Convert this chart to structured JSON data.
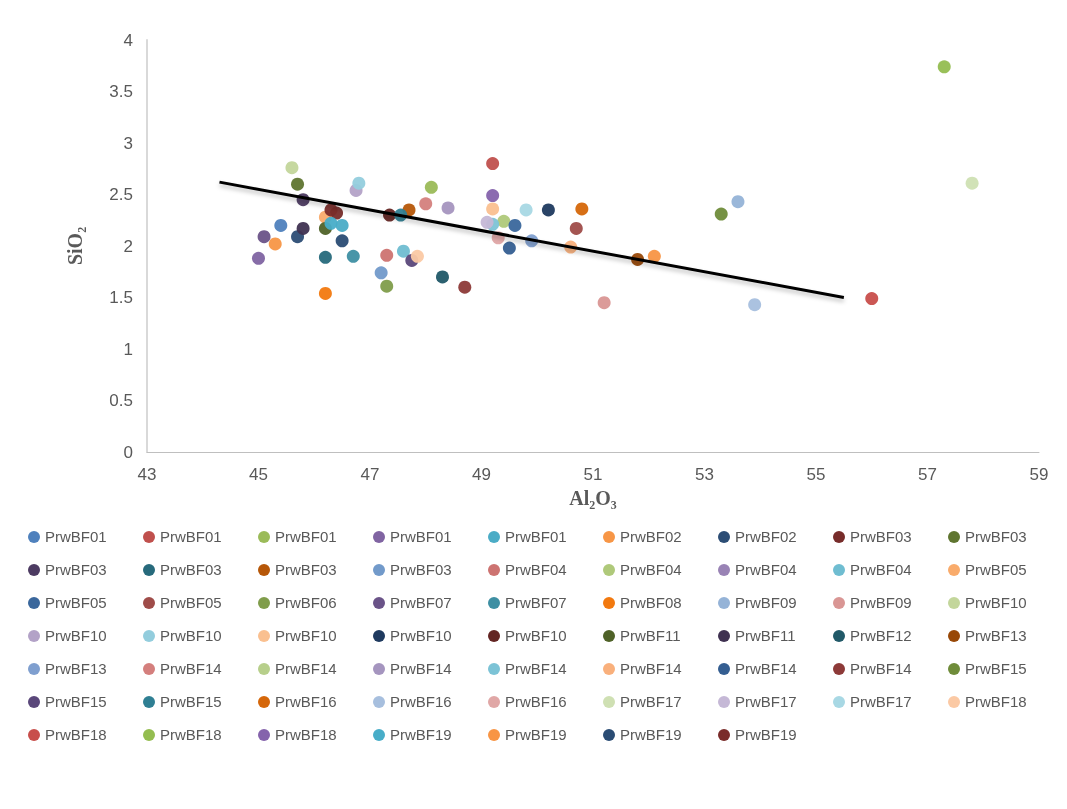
{
  "chart_data": {
    "type": "scatter",
    "xlabel": "Al₂O₃",
    "ylabel": "SiO₂",
    "xlim": [
      43,
      59
    ],
    "xticks": [
      43,
      45,
      47,
      49,
      51,
      53,
      55,
      57,
      59
    ],
    "ylim": [
      0,
      4
    ],
    "yticks": [
      0,
      0.5,
      1,
      1.5,
      2,
      2.5,
      3,
      3.5,
      4
    ],
    "grid": false,
    "legend": "bottom",
    "marker": "circle",
    "series": [
      {
        "name": "PrwBF01",
        "color": "#4f81bd",
        "x": [
          45.4
        ],
        "values": [
          2.2
        ]
      },
      {
        "name": "PrwBF01",
        "color": "#c0504d",
        "x": [
          49.2
        ],
        "values": [
          2.8
        ]
      },
      {
        "name": "PrwBF01",
        "color": "#9bbb59",
        "x": [
          48.1
        ],
        "values": [
          2.57
        ]
      },
      {
        "name": "PrwBF01",
        "color": "#8064a2",
        "x": [
          45.0
        ],
        "values": [
          1.88
        ]
      },
      {
        "name": "PrwBF01",
        "color": "#4bacc6",
        "x": [
          46.5
        ],
        "values": [
          2.2
        ]
      },
      {
        "name": "PrwBF02",
        "color": "#f79646",
        "x": [
          45.3
        ],
        "values": [
          2.02
        ]
      },
      {
        "name": "PrwBF02",
        "color": "#2c4d75",
        "x": [
          45.7
        ],
        "values": [
          2.09
        ]
      },
      {
        "name": "PrwBF03",
        "color": "#772c2a",
        "x": [
          46.4
        ],
        "values": [
          2.32
        ]
      },
      {
        "name": "PrwBF03",
        "color": "#5f7530",
        "x": [
          45.7
        ],
        "values": [
          2.6
        ]
      },
      {
        "name": "PrwBF03",
        "color": "#4d3b62",
        "x": [
          45.8
        ],
        "values": [
          2.45
        ]
      },
      {
        "name": "PrwBF03",
        "color": "#276a7c",
        "x": [
          46.2
        ],
        "values": [
          1.89
        ]
      },
      {
        "name": "PrwBF03",
        "color": "#b65708",
        "x": [
          47.7
        ],
        "values": [
          2.35
        ]
      },
      {
        "name": "PrwBF03",
        "color": "#729aca",
        "x": [
          47.2
        ],
        "values": [
          1.74
        ]
      },
      {
        "name": "PrwBF04",
        "color": "#cd7371",
        "x": [
          47.3
        ],
        "values": [
          1.91
        ]
      },
      {
        "name": "PrwBF04",
        "color": "#afc97a",
        "x": [
          49.4
        ],
        "values": [
          2.24
        ]
      },
      {
        "name": "PrwBF04",
        "color": "#9983b5",
        "x": [
          null
        ],
        "values": [
          null
        ]
      },
      {
        "name": "PrwBF04",
        "color": "#6fbdd1",
        "x": [
          47.6
        ],
        "values": [
          1.95
        ]
      },
      {
        "name": "PrwBF05",
        "color": "#f9ab6b",
        "x": [
          46.2
        ],
        "values": [
          2.28
        ]
      },
      {
        "name": "PrwBF05",
        "color": "#3a679c",
        "x": [
          49.6
        ],
        "values": [
          2.2
        ]
      },
      {
        "name": "PrwBF05",
        "color": "#9f4c49",
        "x": [
          50.7
        ],
        "values": [
          2.17
        ]
      },
      {
        "name": "PrwBF06",
        "color": "#809d4b",
        "x": [
          47.3
        ],
        "values": [
          1.61
        ]
      },
      {
        "name": "PrwBF07",
        "color": "#6a5388",
        "x": [
          45.1
        ],
        "values": [
          2.09
        ]
      },
      {
        "name": "PrwBF07",
        "color": "#3e8fa3",
        "x": [
          46.7
        ],
        "values": [
          1.9
        ]
      },
      {
        "name": "PrwBF08",
        "color": "#f2790f",
        "x": [
          46.2
        ],
        "values": [
          1.54
        ]
      },
      {
        "name": "PrwBF09",
        "color": "#95b3d7",
        "x": [
          53.6
        ],
        "values": [
          2.43
        ]
      },
      {
        "name": "PrwBF09",
        "color": "#d99694",
        "x": [
          51.2
        ],
        "values": [
          1.45
        ]
      },
      {
        "name": "PrwBF10",
        "color": "#c3d69b",
        "x": [
          45.6
        ],
        "values": [
          2.76
        ]
      },
      {
        "name": "PrwBF10",
        "color": "#b3a2c7",
        "x": [
          46.75
        ],
        "values": [
          2.54
        ]
      },
      {
        "name": "PrwBF10",
        "color": "#93cddd",
        "x": [
          46.8
        ],
        "values": [
          2.61
        ]
      },
      {
        "name": "PrwBF10",
        "color": "#fac090",
        "x": [
          49.2
        ],
        "values": [
          2.36
        ]
      },
      {
        "name": "PrwBF10",
        "color": "#1f3a5f",
        "x": [
          50.2
        ],
        "values": [
          2.35
        ]
      },
      {
        "name": "PrwBF10",
        "color": "#632523",
        "x": [
          47.35
        ],
        "values": [
          2.3
        ]
      },
      {
        "name": "PrwBF11",
        "color": "#4f6228",
        "x": [
          46.2
        ],
        "values": [
          2.17
        ]
      },
      {
        "name": "PrwBF11",
        "color": "#3f3151",
        "x": [
          45.8
        ],
        "values": [
          2.17
        ]
      },
      {
        "name": "PrwBF12",
        "color": "#215968",
        "x": [
          48.3
        ],
        "values": [
          1.7
        ]
      },
      {
        "name": "PrwBF13",
        "color": "#984807",
        "x": [
          51.8
        ],
        "values": [
          1.87
        ]
      },
      {
        "name": "PrwBF13",
        "color": "#7f9fcf",
        "x": [
          49.9
        ],
        "values": [
          2.05
        ]
      },
      {
        "name": "PrwBF14",
        "color": "#d47f7d",
        "x": [
          48.0
        ],
        "values": [
          2.41
        ]
      },
      {
        "name": "PrwBF14",
        "color": "#b7cf8b",
        "x": [
          null
        ],
        "values": [
          null
        ]
      },
      {
        "name": "PrwBF14",
        "color": "#a595bf",
        "x": [
          48.4
        ],
        "values": [
          2.37
        ]
      },
      {
        "name": "PrwBF14",
        "color": "#7cc3d6",
        "x": [
          49.2
        ],
        "values": [
          2.21
        ]
      },
      {
        "name": "PrwBF14",
        "color": "#f9b07c",
        "x": [
          50.6
        ],
        "values": [
          1.99
        ]
      },
      {
        "name": "PrwBF14",
        "color": "#345e91",
        "x": [
          49.5
        ],
        "values": [
          1.98
        ]
      },
      {
        "name": "PrwBF14",
        "color": "#8d3a38",
        "x": [
          48.7
        ],
        "values": [
          1.6
        ]
      },
      {
        "name": "PrwBF15",
        "color": "#6f8c3a",
        "x": [
          53.3
        ],
        "values": [
          2.31
        ]
      },
      {
        "name": "PrwBF15",
        "color": "#5a477a",
        "x": [
          47.75
        ],
        "values": [
          1.86
        ]
      },
      {
        "name": "PrwBF15",
        "color": "#2f7f93",
        "x": [
          47.55
        ],
        "values": [
          2.3
        ]
      },
      {
        "name": "PrwBF16",
        "color": "#d5670a",
        "x": [
          50.8
        ],
        "values": [
          2.36
        ]
      },
      {
        "name": "PrwBF16",
        "color": "#a7bfde",
        "x": [
          53.9
        ],
        "values": [
          1.43
        ]
      },
      {
        "name": "PrwBF16",
        "color": "#e0a7a6",
        "x": [
          49.3
        ],
        "values": [
          2.08
        ]
      },
      {
        "name": "PrwBF17",
        "color": "#cfe0b3",
        "x": [
          57.8
        ],
        "values": [
          2.61
        ]
      },
      {
        "name": "PrwBF17",
        "color": "#c5b8d6",
        "x": [
          49.1
        ],
        "values": [
          2.23
        ]
      },
      {
        "name": "PrwBF17",
        "color": "#a8d8e4",
        "x": [
          49.8
        ],
        "values": [
          2.35
        ]
      },
      {
        "name": "PrwBF18",
        "color": "#fbc9a4",
        "x": [
          47.85
        ],
        "values": [
          1.9
        ]
      },
      {
        "name": "PrwBF18",
        "color": "#c84e4b",
        "x": [
          56.0
        ],
        "values": [
          1.49
        ]
      },
      {
        "name": "PrwBF18",
        "color": "#94bd50",
        "x": [
          57.3
        ],
        "values": [
          3.74
        ]
      },
      {
        "name": "PrwBF18",
        "color": "#8563ac",
        "x": [
          49.2
        ],
        "values": [
          2.49
        ]
      },
      {
        "name": "PrwBF19",
        "color": "#48adc8",
        "x": [
          46.3
        ],
        "values": [
          2.22
        ]
      },
      {
        "name": "PrwBF19",
        "color": "#f89545",
        "x": [
          52.1
        ],
        "values": [
          1.9
        ]
      },
      {
        "name": "PrwBF19",
        "color": "#2a4c74",
        "x": [
          46.5
        ],
        "values": [
          2.05
        ]
      },
      {
        "name": "PrwBF19",
        "color": "#7a2c2a",
        "x": [
          46.3
        ],
        "values": [
          2.35
        ]
      },
      {
        "type": "line",
        "marker": "none",
        "color": "#000000",
        "x": [
          44.3,
          55.5
        ],
        "values": [
          2.62,
          1.5
        ]
      }
    ]
  }
}
